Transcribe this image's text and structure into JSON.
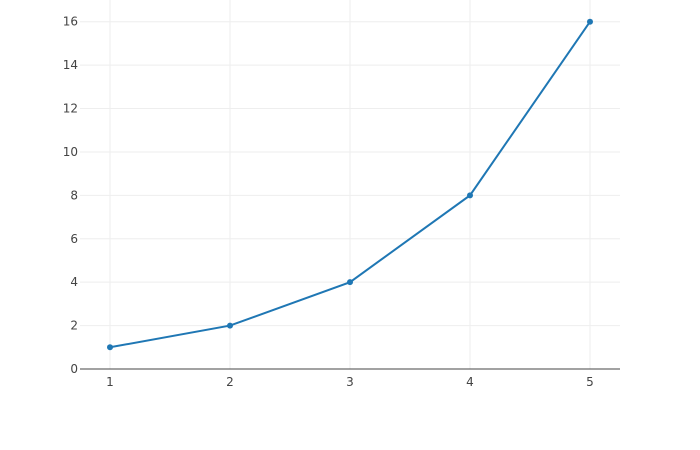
{
  "chart_data": {
    "type": "line",
    "mode": "lines+markers",
    "x": [
      1,
      2,
      3,
      4,
      5
    ],
    "y": [
      1,
      2,
      4,
      8,
      16
    ],
    "xlim": [
      0.75,
      5.25
    ],
    "ylim": [
      0,
      17
    ],
    "x_ticks": [
      1,
      2,
      3,
      4,
      5
    ],
    "y_ticks": [
      0,
      2,
      4,
      6,
      8,
      10,
      12,
      14,
      16
    ],
    "title": "",
    "xlabel": "",
    "ylabel": "",
    "grid": true,
    "colors": {
      "line": "#1f77b4",
      "grid": "#eeeeee",
      "zeroline": "#444444"
    }
  }
}
